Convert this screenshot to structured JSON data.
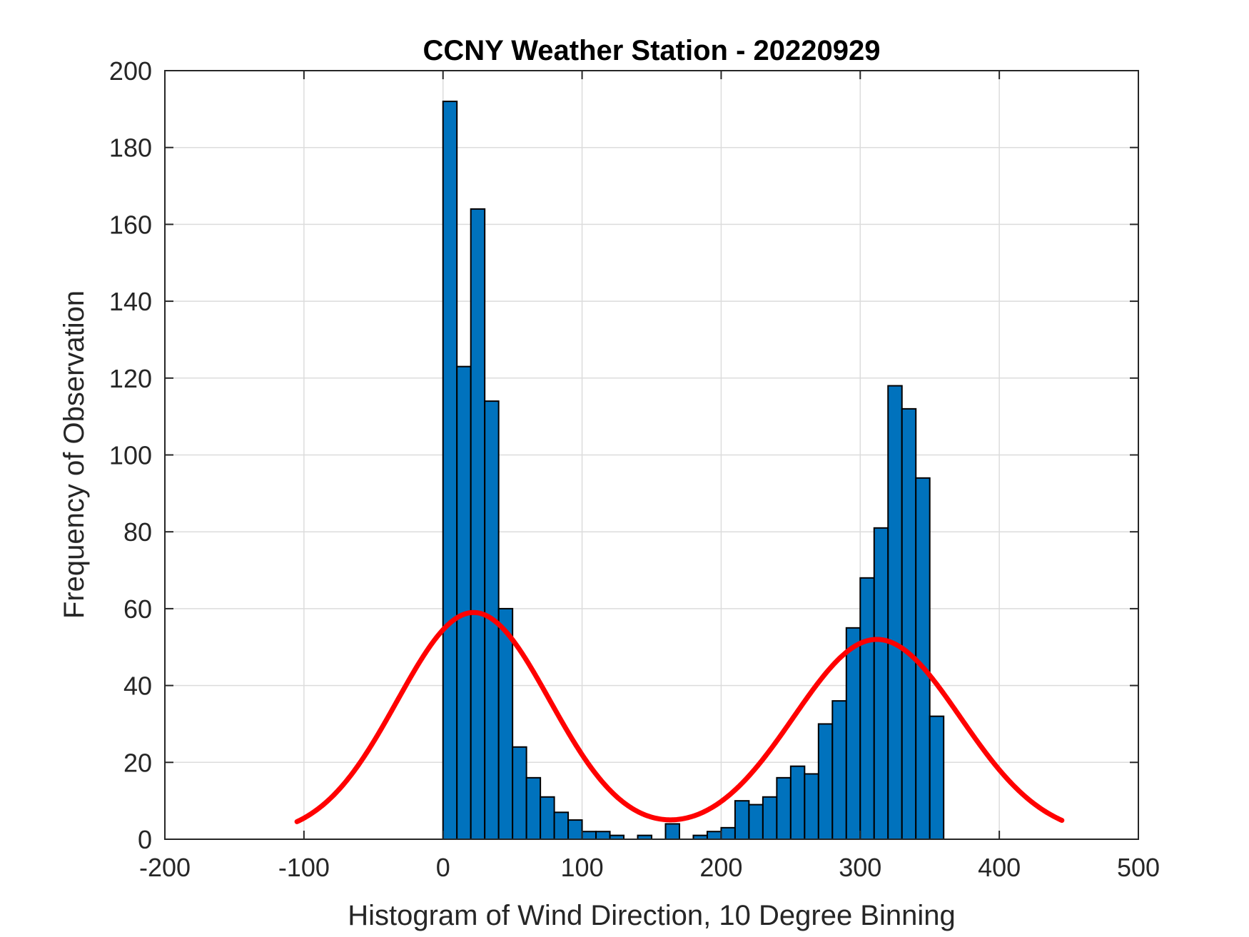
{
  "chart_data": {
    "type": "bar",
    "title": "CCNY Weather Station - 20220929",
    "xlabel": "Histogram of Wind Direction, 10 Degree Binning",
    "ylabel": "Frequency of Observation",
    "xlim": [
      -200,
      500
    ],
    "ylim": [
      0,
      200
    ],
    "xticks": [
      -200,
      -100,
      0,
      100,
      200,
      300,
      400,
      500
    ],
    "xtick_labels": [
      "-200",
      "-100",
      "0",
      "100",
      "200",
      "300",
      "400",
      "500"
    ],
    "yticks": [
      0,
      20,
      40,
      60,
      80,
      100,
      120,
      140,
      160,
      180,
      200
    ],
    "ytick_labels": [
      "0",
      "20",
      "40",
      "60",
      "80",
      "100",
      "120",
      "140",
      "160",
      "180",
      "200"
    ],
    "grid": true,
    "bin_width": 10,
    "bin_edges_start": [
      0,
      10,
      20,
      30,
      40,
      50,
      60,
      70,
      80,
      90,
      100,
      110,
      120,
      130,
      140,
      150,
      160,
      170,
      180,
      190,
      200,
      210,
      220,
      230,
      240,
      250,
      260,
      270,
      280,
      290,
      300,
      310,
      320,
      330,
      340,
      350
    ],
    "values": [
      192,
      123,
      164,
      114,
      60,
      24,
      16,
      11,
      7,
      5,
      2,
      2,
      1,
      0,
      1,
      0,
      4,
      0,
      1,
      2,
      3,
      10,
      9,
      11,
      16,
      19,
      17,
      30,
      36,
      55,
      68,
      81,
      118,
      112,
      94,
      32
    ],
    "series": [
      {
        "name": "fit",
        "type": "line",
        "x_range": [
          -105,
          445
        ],
        "components": [
          {
            "amplitude": 58.5,
            "mean": 22,
            "sigma": 55
          },
          {
            "amplitude": 51.5,
            "mean": 312,
            "sigma": 60
          }
        ],
        "baseline": 0.5
      }
    ],
    "colors": {
      "bar_fill": "#0072BD",
      "bar_edge": "#000000",
      "fit_line": "#FF0000",
      "grid": "#dcdcdc",
      "axes": "#262626"
    }
  }
}
